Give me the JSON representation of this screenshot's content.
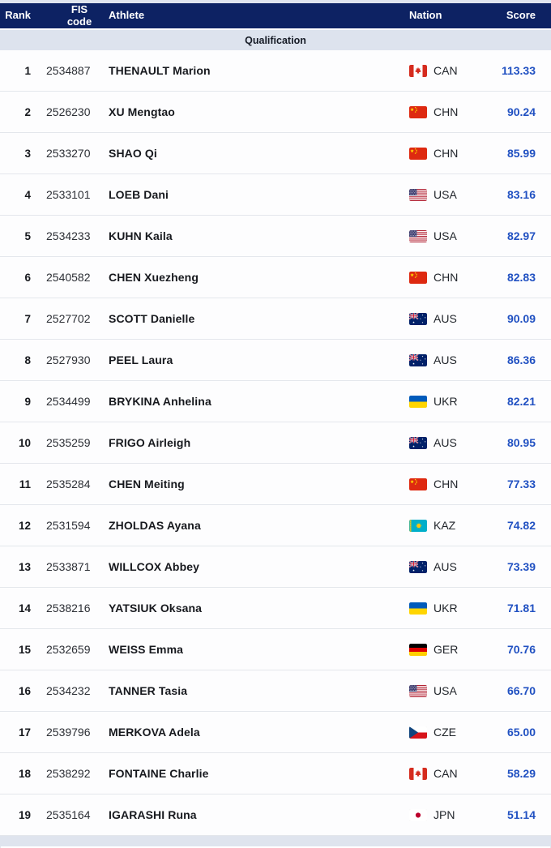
{
  "header": {
    "columns": [
      {
        "key": "rank",
        "label": "Rank"
      },
      {
        "key": "fis_code",
        "label": "FIS code"
      },
      {
        "key": "athlete",
        "label": "Athlete"
      },
      {
        "key": "nation",
        "label": "Nation"
      },
      {
        "key": "score",
        "label": "Score"
      }
    ]
  },
  "section": {
    "title": "Qualification"
  },
  "colors": {
    "header_bg": "#0d2263",
    "header_text": "#ffffff",
    "section_bg": "#dde3ee",
    "score_text": "#2151c2",
    "row_border": "#e4e7ec"
  },
  "rows": [
    {
      "rank": "1",
      "fis_code": "2534887",
      "athlete": "THENAULT Marion",
      "nation": "CAN",
      "score": "113.33"
    },
    {
      "rank": "2",
      "fis_code": "2526230",
      "athlete": "XU Mengtao",
      "nation": "CHN",
      "score": "90.24"
    },
    {
      "rank": "3",
      "fis_code": "2533270",
      "athlete": "SHAO Qi",
      "nation": "CHN",
      "score": "85.99"
    },
    {
      "rank": "4",
      "fis_code": "2533101",
      "athlete": "LOEB Dani",
      "nation": "USA",
      "score": "83.16"
    },
    {
      "rank": "5",
      "fis_code": "2534233",
      "athlete": "KUHN Kaila",
      "nation": "USA",
      "score": "82.97"
    },
    {
      "rank": "6",
      "fis_code": "2540582",
      "athlete": "CHEN Xuezheng",
      "nation": "CHN",
      "score": "82.83"
    },
    {
      "rank": "7",
      "fis_code": "2527702",
      "athlete": "SCOTT Danielle",
      "nation": "AUS",
      "score": "90.09"
    },
    {
      "rank": "8",
      "fis_code": "2527930",
      "athlete": "PEEL Laura",
      "nation": "AUS",
      "score": "86.36"
    },
    {
      "rank": "9",
      "fis_code": "2534499",
      "athlete": "BRYKINA Anhelina",
      "nation": "UKR",
      "score": "82.21"
    },
    {
      "rank": "10",
      "fis_code": "2535259",
      "athlete": "FRIGO Airleigh",
      "nation": "AUS",
      "score": "80.95"
    },
    {
      "rank": "11",
      "fis_code": "2535284",
      "athlete": "CHEN Meiting",
      "nation": "CHN",
      "score": "77.33"
    },
    {
      "rank": "12",
      "fis_code": "2531594",
      "athlete": "ZHOLDAS Ayana",
      "nation": "KAZ",
      "score": "74.82"
    },
    {
      "rank": "13",
      "fis_code": "2533871",
      "athlete": "WILLCOX Abbey",
      "nation": "AUS",
      "score": "73.39"
    },
    {
      "rank": "14",
      "fis_code": "2538216",
      "athlete": "YATSIUK Oksana",
      "nation": "UKR",
      "score": "71.81"
    },
    {
      "rank": "15",
      "fis_code": "2532659",
      "athlete": "WEISS Emma",
      "nation": "GER",
      "score": "70.76"
    },
    {
      "rank": "16",
      "fis_code": "2534232",
      "athlete": "TANNER Tasia",
      "nation": "USA",
      "score": "66.70"
    },
    {
      "rank": "17",
      "fis_code": "2539796",
      "athlete": "MERKOVA Adela",
      "nation": "CZE",
      "score": "65.00"
    },
    {
      "rank": "18",
      "fis_code": "2538292",
      "athlete": "FONTAINE Charlie",
      "nation": "CAN",
      "score": "58.29"
    },
    {
      "rank": "19",
      "fis_code": "2535164",
      "athlete": "IGARASHI Runa",
      "nation": "JPN",
      "score": "51.14"
    }
  ]
}
